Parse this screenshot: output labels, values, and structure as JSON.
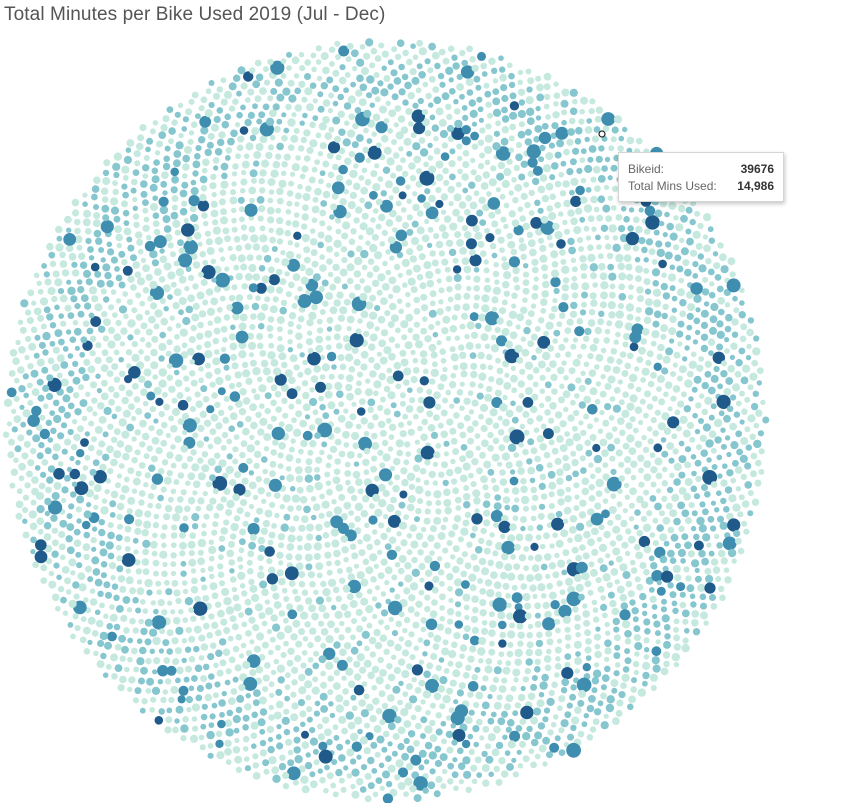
{
  "title": "Total Minutes per Bike Used 2019 (Jul - Dec)",
  "colors": {
    "low": "#c6e9df",
    "mid": "#85c6cf",
    "high": "#3f8eb0",
    "max": "#1f5a8a",
    "marker_stroke": "#222222"
  },
  "tooltip": {
    "bikeid_label": "Bikeid:",
    "bikeid_value": "39676",
    "mins_label": "Total Mins Used:",
    "mins_value": "14,986"
  },
  "chart_data": {
    "type": "packed-bubble",
    "measure": "Total Mins Used",
    "dimension": "Bikeid",
    "highlighted_point": {
      "bikeid": "39676",
      "total_mins_used": 14986
    }
  }
}
